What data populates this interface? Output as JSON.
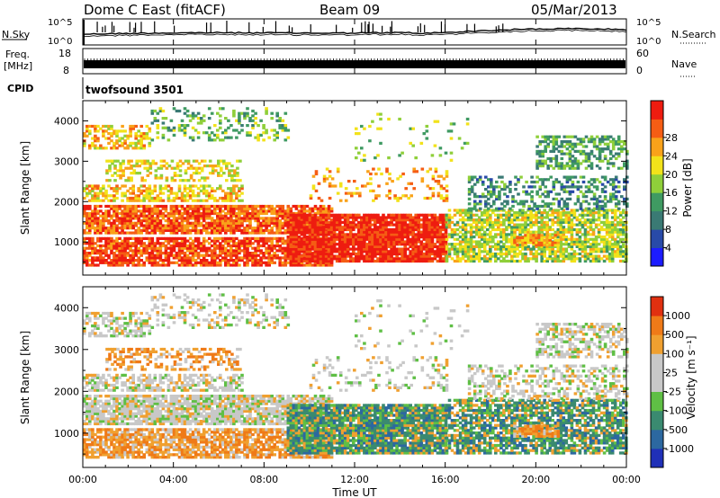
{
  "header": {
    "title": "Dome C East (fitACF)",
    "beam": "Beam 09",
    "date": "05/Mar/2013"
  },
  "top_panels": {
    "nsky_label": "N.Sky",
    "nsearch_label": "N.Search",
    "nsky_ticks": [
      "10^5",
      "10^0"
    ],
    "nsearch_ticks": [
      "10^5",
      "10^0"
    ],
    "freq_label": "Freq.",
    "freq_unit": "[MHz]",
    "freq_ticks": [
      "18",
      "8"
    ],
    "nave_label": "Nave",
    "nave_ticks": [
      "60",
      "0"
    ],
    "cpid_label": "CPID",
    "cpid_value": "twofsound 3501"
  },
  "chart_data": [
    {
      "type": "heatmap",
      "name": "power",
      "ylabel": "Slant Range [km]",
      "ylim": [
        180,
        4500
      ],
      "yticks": [
        "1000",
        "2000",
        "3000",
        "4000"
      ],
      "colorbar_label": "Power [dB]",
      "colorbar_ticks": [
        "4",
        "8",
        "12",
        "16",
        "20",
        "24",
        "28"
      ],
      "colorbar_colors": [
        "#1c1cff",
        "#284aa8",
        "#3a7a74",
        "#3f9a62",
        "#8fcf3a",
        "#f2e21a",
        "#f9a21a",
        "#f55d14",
        "#ee1c10"
      ]
    },
    {
      "type": "heatmap",
      "name": "velocity",
      "ylabel": "Slant Range [km]",
      "ylim": [
        180,
        4500
      ],
      "yticks": [
        "1000",
        "2000",
        "3000",
        "4000"
      ],
      "colorbar_label": "Velocity [m s⁻¹]",
      "colorbar_ticks": [
        "1000",
        "500",
        "100",
        "25",
        "-25",
        "-100",
        "-500",
        "-1000"
      ],
      "colorbar_colors": [
        "#2030b8",
        "#2c68a0",
        "#3a8a70",
        "#5fbf45",
        "#c8c8c8",
        "#c8c8c8",
        "#f0a030",
        "#ef7a18",
        "#e03010"
      ]
    }
  ],
  "x_axis": {
    "ticks": [
      "00:00",
      "04:00",
      "08:00",
      "12:00",
      "16:00",
      "20:00",
      "00:00"
    ],
    "label": "Time UT",
    "xlim": [
      0,
      24
    ]
  }
}
